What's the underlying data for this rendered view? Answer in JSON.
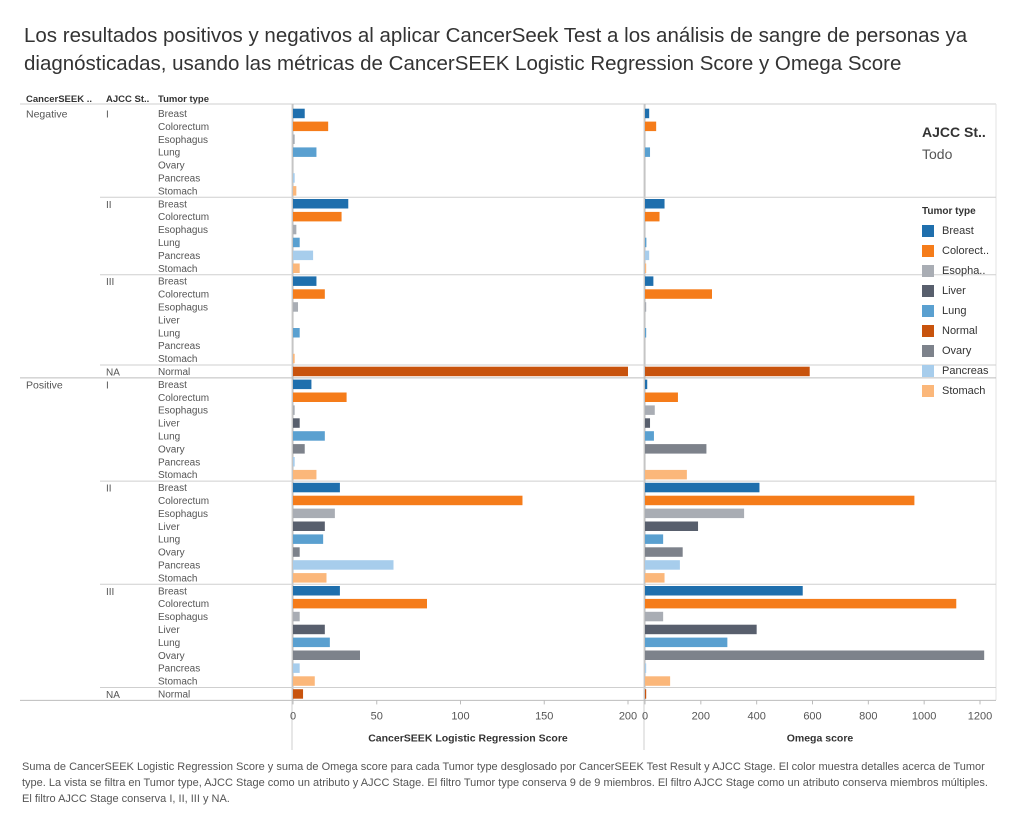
{
  "title": "Los resultados positivos y negativos al aplicar CancerSeek Test a los análisis de sangre de personas ya diagnósticadas, usando las métricas de CancerSEEK Logistic Regression Score y Omega Score",
  "footnote": "Suma de CancerSEEK Logistic Regression Score y suma de Omega score para cada Tumor type desglosado por CancerSEEK Test Result y AJCC Stage.  El color muestra detalles acerca de Tumor type. La vista se filtra en Tumor type, AJCC Stage como un atributo y AJCC Stage. El filtro Tumor type conserva 9 de 9 miembros. El filtro AJCC Stage como un atributo conserva miembros múltiples. El filtro AJCC Stage conserva I, II, III y NA.",
  "filter_card": {
    "title": "AJCC St..",
    "value": "Todo"
  },
  "legend": {
    "title": "Tumor type",
    "items": [
      {
        "label": "Breast",
        "color": "#1f6fad"
      },
      {
        "label": "Colorect..",
        "color": "#f57c1a"
      },
      {
        "label": "Esopha..",
        "color": "#a9adb4"
      },
      {
        "label": "Liver",
        "color": "#585f6d"
      },
      {
        "label": "Lung",
        "color": "#5aa0d0"
      },
      {
        "label": "Normal",
        "color": "#c8530d"
      },
      {
        "label": "Ovary",
        "color": "#7d828b"
      },
      {
        "label": "Pancreas",
        "color": "#a7cdec"
      },
      {
        "label": "Stomach",
        "color": "#fbb77a"
      }
    ]
  },
  "chart_data": {
    "type": "bar",
    "orientation": "horizontal",
    "row_headers": [
      "CancerSEEK ..",
      "AJCC St..",
      "Tumor type"
    ],
    "colors": {
      "Breast": "#1f6fad",
      "Colorectum": "#f57c1a",
      "Esophagus": "#a9adb4",
      "Liver": "#585f6d",
      "Lung": "#5aa0d0",
      "Normal": "#c8530d",
      "Ovary": "#7d828b",
      "Pancreas": "#a7cdec",
      "Stomach": "#fbb77a"
    },
    "panels": [
      {
        "xlabel": "CancerSEEK Logistic Regression Score",
        "xlim": [
          0,
          205
        ],
        "ticks": [
          0,
          50,
          100,
          150,
          200
        ],
        "value_key": "lr"
      },
      {
        "xlabel": "Omega score",
        "xlim": [
          0,
          1240
        ],
        "ticks": [
          0,
          200,
          400,
          600,
          800,
          1000,
          1200
        ],
        "value_key": "omega"
      }
    ],
    "groups": [
      {
        "result": "Negative",
        "stage": "I",
        "rows": [
          {
            "tumor": "Breast",
            "lr": 7,
            "omega": 15
          },
          {
            "tumor": "Colorectum",
            "lr": 21,
            "omega": 40
          },
          {
            "tumor": "Esophagus",
            "lr": 1,
            "omega": 0
          },
          {
            "tumor": "Lung",
            "lr": 14,
            "omega": 18
          },
          {
            "tumor": "Ovary",
            "lr": 0,
            "omega": 0
          },
          {
            "tumor": "Pancreas",
            "lr": 1,
            "omega": 0
          },
          {
            "tumor": "Stomach",
            "lr": 2,
            "omega": 0
          }
        ]
      },
      {
        "result": "",
        "stage": "II",
        "rows": [
          {
            "tumor": "Breast",
            "lr": 33,
            "omega": 70
          },
          {
            "tumor": "Colorectum",
            "lr": 29,
            "omega": 52
          },
          {
            "tumor": "Esophagus",
            "lr": 2,
            "omega": 0
          },
          {
            "tumor": "Lung",
            "lr": 4,
            "omega": 5
          },
          {
            "tumor": "Pancreas",
            "lr": 12,
            "omega": 15
          },
          {
            "tumor": "Stomach",
            "lr": 4,
            "omega": 4
          }
        ]
      },
      {
        "result": "",
        "stage": "III",
        "rows": [
          {
            "tumor": "Breast",
            "lr": 14,
            "omega": 30
          },
          {
            "tumor": "Colorectum",
            "lr": 19,
            "omega": 240
          },
          {
            "tumor": "Esophagus",
            "lr": 3,
            "omega": 3
          },
          {
            "tumor": "Liver",
            "lr": 0,
            "omega": 0
          },
          {
            "tumor": "Lung",
            "lr": 4,
            "omega": 4
          },
          {
            "tumor": "Pancreas",
            "lr": 0,
            "omega": 0
          },
          {
            "tumor": "Stomach",
            "lr": 1,
            "omega": 0
          }
        ]
      },
      {
        "result": "",
        "stage": "NA",
        "rows": [
          {
            "tumor": "Normal",
            "lr": 200,
            "omega": 590
          }
        ]
      },
      {
        "result": "Positive",
        "stage": "I",
        "rows": [
          {
            "tumor": "Breast",
            "lr": 11,
            "omega": 8
          },
          {
            "tumor": "Colorectum",
            "lr": 32,
            "omega": 118
          },
          {
            "tumor": "Esophagus",
            "lr": 1,
            "omega": 35
          },
          {
            "tumor": "Liver",
            "lr": 4,
            "omega": 18
          },
          {
            "tumor": "Lung",
            "lr": 19,
            "omega": 32
          },
          {
            "tumor": "Ovary",
            "lr": 7,
            "omega": 220
          },
          {
            "tumor": "Pancreas",
            "lr": 1,
            "omega": 0
          },
          {
            "tumor": "Stomach",
            "lr": 14,
            "omega": 150
          }
        ]
      },
      {
        "result": "",
        "stage": "II",
        "rows": [
          {
            "tumor": "Breast",
            "lr": 28,
            "omega": 410
          },
          {
            "tumor": "Colorectum",
            "lr": 137,
            "omega": 965
          },
          {
            "tumor": "Esophagus",
            "lr": 25,
            "omega": 355
          },
          {
            "tumor": "Liver",
            "lr": 19,
            "omega": 190
          },
          {
            "tumor": "Lung",
            "lr": 18,
            "omega": 65
          },
          {
            "tumor": "Ovary",
            "lr": 4,
            "omega": 135
          },
          {
            "tumor": "Pancreas",
            "lr": 60,
            "omega": 125
          },
          {
            "tumor": "Stomach",
            "lr": 20,
            "omega": 70
          }
        ]
      },
      {
        "result": "",
        "stage": "III",
        "rows": [
          {
            "tumor": "Breast",
            "lr": 28,
            "omega": 565
          },
          {
            "tumor": "Colorectum",
            "lr": 80,
            "omega": 1115
          },
          {
            "tumor": "Esophagus",
            "lr": 4,
            "omega": 65
          },
          {
            "tumor": "Liver",
            "lr": 19,
            "omega": 400
          },
          {
            "tumor": "Lung",
            "lr": 22,
            "omega": 295
          },
          {
            "tumor": "Ovary",
            "lr": 40,
            "omega": 1215
          },
          {
            "tumor": "Pancreas",
            "lr": 4,
            "omega": 3
          },
          {
            "tumor": "Stomach",
            "lr": 13,
            "omega": 90
          }
        ]
      },
      {
        "result": "",
        "stage": "NA",
        "rows": [
          {
            "tumor": "Normal",
            "lr": 6,
            "omega": 4
          }
        ]
      }
    ]
  }
}
